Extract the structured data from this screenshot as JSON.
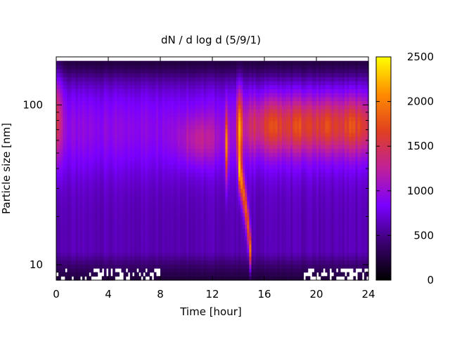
{
  "chart_data": {
    "type": "heatmap",
    "title": "dN / d log d (5/9/1)",
    "xlabel": "Time [hour]",
    "ylabel": "Particle size [nm]",
    "x_range": [
      0,
      24
    ],
    "y_scale": "log",
    "y_range_nm": [
      8,
      200
    ],
    "x_ticks": [
      "0",
      "4",
      "8",
      "12",
      "16",
      "20",
      "24"
    ],
    "x_tick_values": [
      0,
      4,
      8,
      12,
      16,
      20,
      24
    ],
    "y_ticks": [
      "10",
      "100"
    ],
    "y_tick_values": [
      10,
      100
    ],
    "colorbar": {
      "range": [
        0,
        2500
      ],
      "ticks": [
        "0",
        "500",
        "1000",
        "1500",
        "2000",
        "2500"
      ],
      "tick_values": [
        0,
        500,
        1000,
        1500,
        2000,
        2500
      ],
      "palette": [
        "#000000",
        "#3a006e",
        "#7a00ff",
        "#c0209a",
        "#e04020",
        "#ff8c00",
        "#ffff00"
      ]
    },
    "features": [
      {
        "time": [
          0,
          0.5
        ],
        "size_nm": [
          50,
          150
        ],
        "level": 1300
      },
      {
        "time": [
          13,
          15
        ],
        "size_nm": [
          20,
          120
        ],
        "level": 1900
      },
      {
        "time": [
          15,
          24
        ],
        "size_nm": [
          45,
          110
        ],
        "level": 1500
      }
    ],
    "grid": false,
    "legend": "colorbar-right"
  }
}
